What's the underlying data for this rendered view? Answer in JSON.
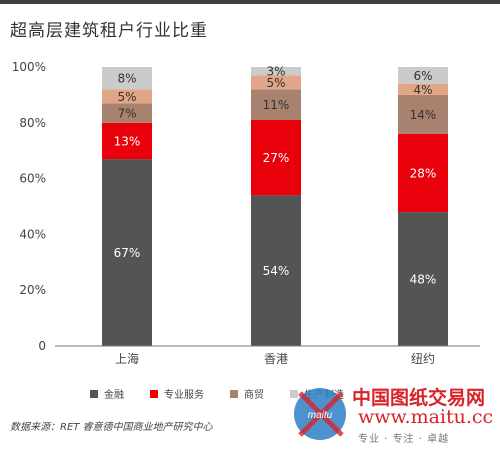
{
  "chart_data": {
    "type": "bar",
    "stacked": true,
    "title": "超高层建筑租户行业比重",
    "categories": [
      "上海",
      "香港",
      "纽约"
    ],
    "yticks": [
      "0",
      "20%",
      "40%",
      "60%",
      "80%",
      "100%"
    ],
    "ylim": [
      0,
      100
    ],
    "series": [
      {
        "name": "金融",
        "color": "#555454",
        "values": [
          67,
          54,
          48
        ],
        "labels": [
          "67%",
          "54%",
          "48%"
        ]
      },
      {
        "name": "专业服务",
        "color": "#e8000b",
        "values": [
          13,
          27,
          28
        ],
        "labels": [
          "13%",
          "27%",
          "28%"
        ]
      },
      {
        "name": "商贸",
        "color": "#a8826f",
        "values": [
          7,
          11,
          14
        ],
        "labels": [
          "7%",
          "11%",
          "14%"
        ]
      },
      {
        "name": "",
        "color": "#e0a687",
        "values": [
          5,
          5,
          4
        ],
        "labels": [
          "5%",
          "5%",
          "4%"
        ]
      },
      {
        "name": "",
        "color": "#cbcbcb",
        "values": [
          8,
          3,
          6
        ],
        "labels": [
          "8%",
          "3%",
          "6%"
        ]
      }
    ],
    "legend": [
      "金融",
      "专业服务",
      "商贸",
      "生产制造"
    ]
  },
  "source": "数据来源：RET 睿意德中国商业地产研究中心",
  "watermark": {
    "name": "中国图纸交易网",
    "url": "www.maitu.cc",
    "slogan": "专业 · 专注 · 卓越",
    "logo_text": "maitu"
  }
}
